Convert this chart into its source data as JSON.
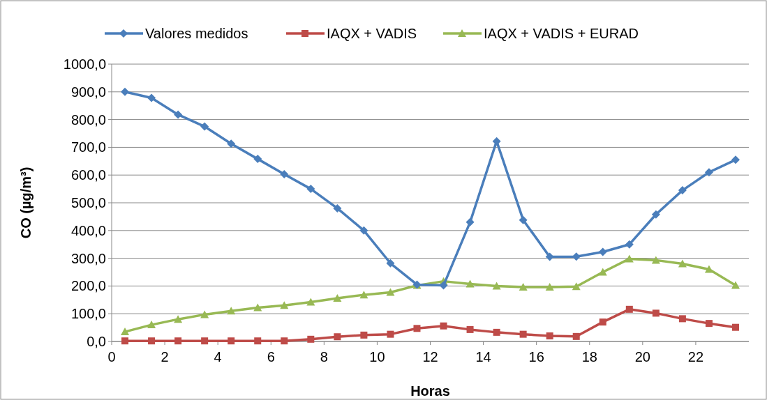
{
  "chart_data": {
    "type": "line",
    "xlabel": "Horas",
    "ylabel": "CO (µg/m³)",
    "x": [
      0.5,
      1.5,
      2.5,
      3.5,
      4.5,
      5.5,
      6.5,
      7.5,
      8.5,
      9.5,
      10.5,
      11.5,
      12.5,
      13.5,
      14.5,
      15.5,
      16.5,
      17.5,
      18.5,
      19.5,
      20.5,
      21.5,
      22.5,
      23.5
    ],
    "series": [
      {
        "name": "Valores medidos",
        "color": "#4a7ebb",
        "marker": "diamond",
        "values": [
          900,
          878,
          818,
          775,
          713,
          658,
          603,
          550,
          480,
          400,
          282,
          205,
          202,
          430,
          722,
          438,
          305,
          306,
          323,
          350,
          458,
          545,
          610,
          655
        ]
      },
      {
        "name": "IAQX + VADIS",
        "color": "#be4b48",
        "marker": "square",
        "values": [
          2,
          2,
          2,
          2,
          2,
          2,
          2,
          8,
          17,
          23,
          26,
          47,
          56,
          43,
          33,
          26,
          20,
          18,
          70,
          116,
          102,
          82,
          65,
          51
        ]
      },
      {
        "name": "IAQX + VADIS + EURAD",
        "color": "#98b954",
        "marker": "triangle",
        "values": [
          35,
          60,
          80,
          97,
          110,
          122,
          130,
          142,
          156,
          168,
          177,
          202,
          217,
          207,
          200,
          196,
          196,
          198,
          250,
          298,
          293,
          280,
          260,
          202
        ]
      }
    ],
    "xlim": [
      0,
      24
    ],
    "xticks": [
      0,
      2,
      4,
      6,
      8,
      10,
      12,
      14,
      16,
      18,
      20,
      22
    ],
    "ylim": [
      0,
      1000
    ],
    "yticks": [
      {
        "value": 0,
        "label": "0,0"
      },
      {
        "value": 100,
        "label": "100,0"
      },
      {
        "value": 200,
        "label": "200,0"
      },
      {
        "value": 300,
        "label": "300,0"
      },
      {
        "value": 400,
        "label": "400,0"
      },
      {
        "value": 500,
        "label": "500,0"
      },
      {
        "value": 600,
        "label": "600,0"
      },
      {
        "value": 700,
        "label": "700,0"
      },
      {
        "value": 800,
        "label": "800,0"
      },
      {
        "value": 900,
        "label": "900,0"
      },
      {
        "value": 1000,
        "label": "1000,0"
      }
    ],
    "grid": "y",
    "legend": "top",
    "line_style": "solid"
  }
}
